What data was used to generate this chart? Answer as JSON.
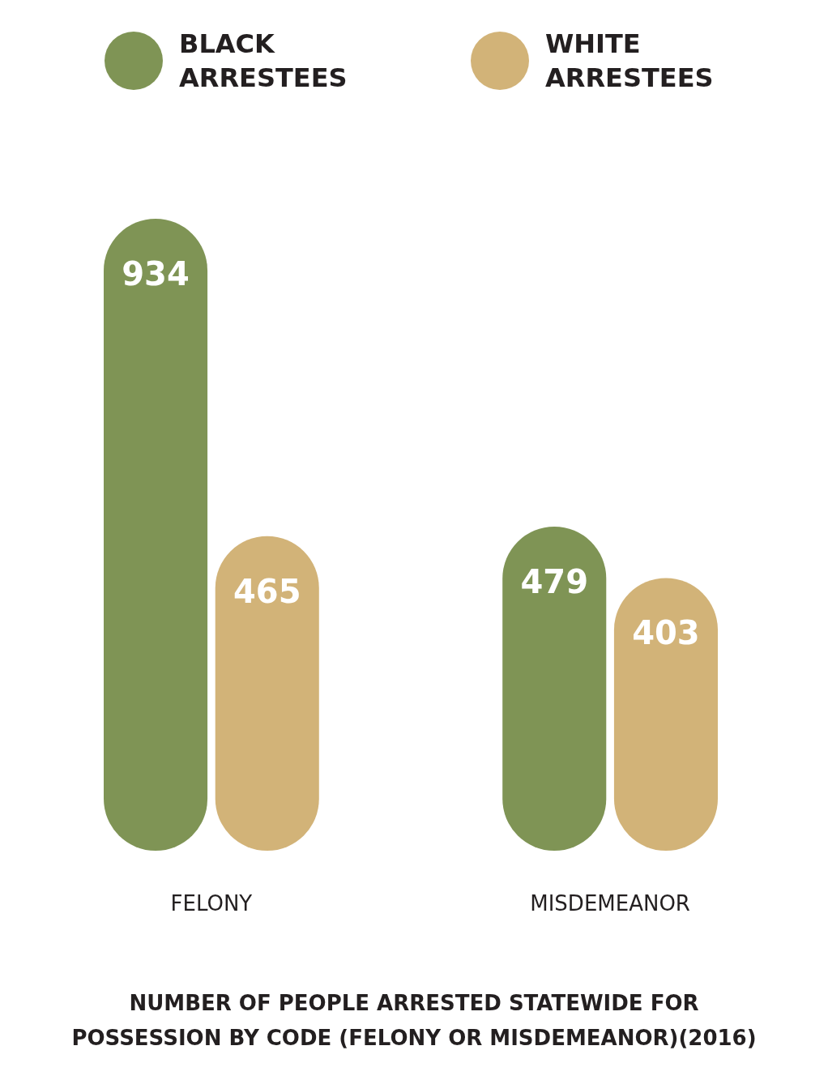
{
  "chart_data": {
    "type": "bar",
    "title": "NUMBER OF PEOPLE ARRESTED STATEWIDE FOR POSSESSION BY CODE (FELONY OR MISDEMEANOR)(2016)",
    "categories": [
      "FELONY",
      "MISDEMEANOR"
    ],
    "series": [
      {
        "name": "BLACK ARRESTEES",
        "color": "#7f9455",
        "values": [
          934,
          479
        ]
      },
      {
        "name": "WHITE ARRESTEES",
        "color": "#d2b378",
        "values": [
          465,
          403
        ]
      }
    ],
    "data_labels": true,
    "legend": "top"
  }
}
